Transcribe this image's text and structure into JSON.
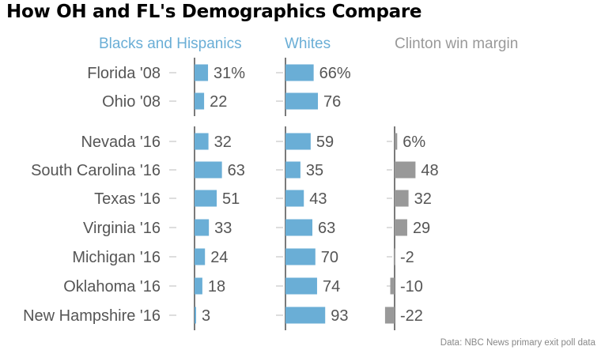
{
  "chart_data": {
    "type": "bar",
    "title": "How OH and FL's Demographics Compare",
    "source": "Data: NBC News primary exit poll data",
    "categories": [
      "Florida '08",
      "Ohio '08",
      "Nevada '16",
      "South Carolina '16",
      "Texas '16",
      "Virginia '16",
      "Michigan '16",
      "Oklahoma '16",
      "New Hampshire '16"
    ],
    "series": [
      {
        "name": "Blacks and Hispanics",
        "color": "#6aaed6",
        "values": [
          31,
          22,
          32,
          63,
          51,
          33,
          24,
          18,
          3
        ],
        "labels": [
          "31%",
          "22",
          "32",
          "63",
          "51",
          "33",
          "24",
          "18",
          "3"
        ]
      },
      {
        "name": "Whites",
        "color": "#6aaed6",
        "values": [
          66,
          76,
          59,
          35,
          43,
          63,
          70,
          74,
          93
        ],
        "labels": [
          "66%",
          "76",
          "59",
          "35",
          "43",
          "63",
          "70",
          "74",
          "93"
        ]
      },
      {
        "name": "Clinton win margin",
        "color": "#999999",
        "values": [
          null,
          null,
          6,
          48,
          32,
          29,
          -2,
          -10,
          -22
        ],
        "labels": [
          "",
          "",
          "6%",
          "48",
          "32",
          "29",
          "-2",
          "-10",
          "-22"
        ]
      }
    ],
    "grid": false,
    "legend": "top"
  }
}
